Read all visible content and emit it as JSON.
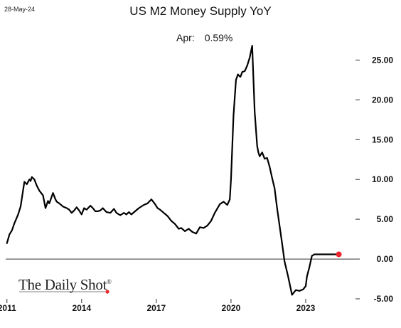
{
  "date_stamp": "28-May-24",
  "logo": {
    "text": "The Daily Shot",
    "mark": "®"
  },
  "chart_data": {
    "type": "line",
    "title": "US M2 Money Supply YoY",
    "annotation": {
      "label": "Apr:",
      "value": "0.59%"
    },
    "xlabel": "",
    "ylabel": "",
    "x_ticks": [
      "2011",
      "2014",
      "2017",
      "2020",
      "2023"
    ],
    "y_ticks": [
      "25.00",
      "20.00",
      "15.00",
      "10.00",
      "5.00",
      "0.00",
      "-5.00"
    ],
    "xlim": [
      2010.95,
      2025.0
    ],
    "ylim": [
      -5,
      27
    ],
    "grid": false,
    "legend": "none",
    "zero_line": true,
    "last_point": {
      "x": 2024.33,
      "y": 0.59
    },
    "series": [
      {
        "color": "#000000",
        "x": [
          2011.0,
          2011.1,
          2011.2,
          2011.3,
          2011.45,
          2011.55,
          2011.7,
          2011.8,
          2011.9,
          2011.95,
          2012.0,
          2012.1,
          2012.2,
          2012.3,
          2012.45,
          2012.55,
          2012.65,
          2012.7,
          2012.75,
          2012.85,
          2012.95,
          2013.0,
          2013.1,
          2013.25,
          2013.4,
          2013.5,
          2013.6,
          2013.7,
          2013.8,
          2013.9,
          2014.0,
          2014.1,
          2014.2,
          2014.35,
          2014.45,
          2014.55,
          2014.65,
          2014.75,
          2014.85,
          2015.0,
          2015.15,
          2015.3,
          2015.4,
          2015.55,
          2015.7,
          2015.8,
          2015.9,
          2016.0,
          2016.15,
          2016.3,
          2016.5,
          2016.65,
          2016.8,
          2016.95,
          2017.05,
          2017.15,
          2017.3,
          2017.45,
          2017.6,
          2017.75,
          2017.9,
          2018.0,
          2018.15,
          2018.3,
          2018.45,
          2018.6,
          2018.75,
          2018.9,
          2019.05,
          2019.2,
          2019.35,
          2019.55,
          2019.7,
          2019.85,
          2019.95,
          2020.0,
          2020.1,
          2020.2,
          2020.28,
          2020.33,
          2020.38,
          2020.45,
          2020.55,
          2020.65,
          2020.75,
          2020.85,
          2020.95,
          2021.05,
          2021.1,
          2021.15,
          2021.25,
          2021.35,
          2021.45,
          2021.55,
          2021.65,
          2021.75,
          2021.85,
          2021.95,
          2022.05,
          2022.15,
          2022.3,
          2022.45,
          2022.6,
          2022.75,
          2022.9,
          2023.0,
          2023.05,
          2023.15,
          2023.25,
          2023.35,
          2023.5,
          2023.65,
          2023.8,
          2023.95,
          2024.1,
          2024.2,
          2024.33
        ],
        "y": [
          2.0,
          3.1,
          3.6,
          4.5,
          5.6,
          6.6,
          9.7,
          9.4,
          10.0,
          9.8,
          10.3,
          10.0,
          9.2,
          8.6,
          8.0,
          6.4,
          7.3,
          7.0,
          7.4,
          8.3,
          7.5,
          7.2,
          7.0,
          6.6,
          6.4,
          6.2,
          5.8,
          6.1,
          6.5,
          6.1,
          5.6,
          6.4,
          6.2,
          6.7,
          6.4,
          6.0,
          6.0,
          6.1,
          6.4,
          5.9,
          5.8,
          6.3,
          5.8,
          5.5,
          5.8,
          5.6,
          5.9,
          5.6,
          6.0,
          6.4,
          6.8,
          7.0,
          7.5,
          6.9,
          6.4,
          6.2,
          5.8,
          5.4,
          4.8,
          4.4,
          3.8,
          3.9,
          3.5,
          3.8,
          3.4,
          3.2,
          4.0,
          3.9,
          4.2,
          4.8,
          5.8,
          6.9,
          7.2,
          6.8,
          7.5,
          10.0,
          18.0,
          22.5,
          23.2,
          23.0,
          22.9,
          23.5,
          23.6,
          24.3,
          25.3,
          26.8,
          18.5,
          14.2,
          13.4,
          12.9,
          13.4,
          12.6,
          12.7,
          11.6,
          10.2,
          8.9,
          6.4,
          4.2,
          2.0,
          -0.3,
          -2.3,
          -4.5,
          -3.9,
          -4.0,
          -3.8,
          -3.4,
          -2.2,
          -1.0,
          0.4,
          0.59,
          0.59,
          0.59,
          0.59,
          0.59,
          0.59,
          0.59,
          0.59
        ]
      }
    ]
  }
}
